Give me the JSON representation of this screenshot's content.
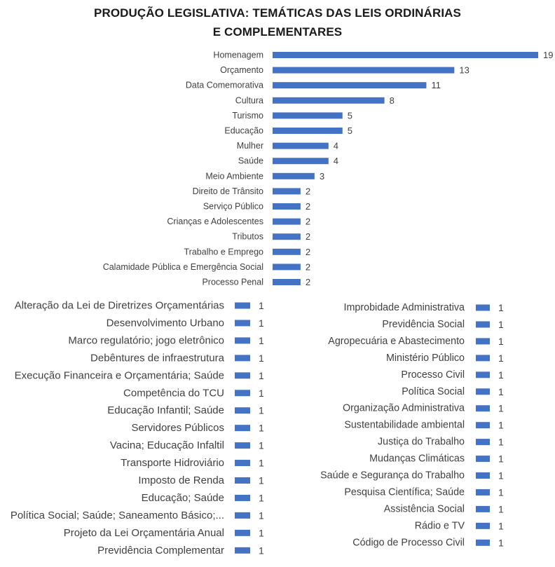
{
  "chart_data": [
    {
      "type": "bar",
      "orientation": "horizontal",
      "title_lines": [
        "PRODUÇÃO LEGISLATIVA: TEMÁTICAS DAS LEIS ORDINÁRIAS",
        "E COMPLEMENTARES"
      ],
      "categories": [
        "Homenagem",
        "Orçamento",
        "Data Comemorativa",
        "Cultura",
        "Turismo",
        "Educação",
        "Mulher",
        "Saúde",
        "Meio Ambiente",
        "Direito de Trânsito",
        "Serviço Público",
        "Crianças e Adolescentes",
        "Tributos",
        "Trabalho e Emprego",
        "Calamidade Pública e Emergência Social",
        "Processo Penal"
      ],
      "values": [
        19,
        13,
        11,
        8,
        5,
        5,
        4,
        4,
        3,
        2,
        2,
        2,
        2,
        2,
        2,
        2
      ],
      "bar_color": "#4472C4"
    },
    {
      "type": "bar",
      "orientation": "horizontal",
      "categories": [
        "Alteração da Lei de Diretrizes Orçamentárias",
        "Desenvolvimento Urbano",
        "Marco regulatório; jogo eletrônico",
        "Debêntures de infraestrutura",
        "Execução Financeira e Orçamentária; Saúde",
        "Competência do TCU",
        "Educação Infantil; Saúde",
        "Servidores Públicos",
        "Vacina; Educação Infaltil",
        "Transporte Hidroviário",
        "Imposto de Renda",
        "Educação; Saúde",
        "Política Social; Saúde;  Saneamento Básico;...",
        "Projeto da Lei Orçamentária Anual",
        "Previdência Complementar"
      ],
      "values": [
        1,
        1,
        1,
        1,
        1,
        1,
        1,
        1,
        1,
        1,
        1,
        1,
        1,
        1,
        1
      ],
      "bar_color": "#4472C4"
    },
    {
      "type": "bar",
      "orientation": "horizontal",
      "categories": [
        "Improbidade Administrativa",
        "Previdência Social",
        "Agropecuária e Abastecimento",
        "Ministério Público",
        "Processo Civil",
        "Política Social",
        "Organização Administrativa",
        "Sustentabilidade ambiental",
        "Justiça do Trabalho",
        "Mudanças Climáticas",
        "Saúde e Segurança do Trabalho",
        "Pesquisa Científica; Saúde",
        "Assistência Social",
        "Rádio e TV",
        "Código de Processo Civil"
      ],
      "values": [
        1,
        1,
        1,
        1,
        1,
        1,
        1,
        1,
        1,
        1,
        1,
        1,
        1,
        1,
        1
      ],
      "bar_color": "#4472C4"
    }
  ]
}
